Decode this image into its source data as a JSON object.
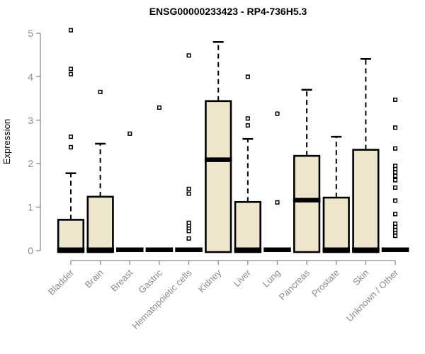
{
  "title": "ENSG00000233423 - RP4-736H5.3",
  "chart_data": {
    "type": "boxplot",
    "title": "ENSG00000233423 - RP4-736H5.3",
    "ylabel": "Expression",
    "xlabel": "",
    "ylim": [
      0,
      5
    ],
    "yticks": [
      0,
      1,
      2,
      3,
      4,
      5
    ],
    "grid": false,
    "legend": "none",
    "categories": [
      "Bladder",
      "Brain",
      "Breast",
      "Gastric",
      "Hematopoietic cells",
      "Kidney",
      "Liver",
      "Lung",
      "Pancreas",
      "Prostate",
      "Skin",
      "Unknown / Other"
    ],
    "boxes": [
      {
        "category": "Bladder",
        "q1": 0,
        "median": 0.02,
        "q3": 0.71,
        "whisker_low": 0,
        "whisker_high": 1.78,
        "outliers": [
          2.38,
          2.62,
          4.06,
          4.18,
          5.07
        ]
      },
      {
        "category": "Brain",
        "q1": 0,
        "median": 0.02,
        "q3": 1.24,
        "whisker_low": 0,
        "whisker_high": 2.46,
        "outliers": [
          3.65
        ]
      },
      {
        "category": "Breast",
        "q1": 0,
        "median": 0.02,
        "q3": 0,
        "whisker_low": 0,
        "whisker_high": 0,
        "outliers": [
          2.69
        ]
      },
      {
        "category": "Gastric",
        "q1": 0,
        "median": 0.02,
        "q3": 0,
        "whisker_low": 0,
        "whisker_high": 0,
        "outliers": [
          3.29
        ]
      },
      {
        "category": "Hematopoietic cells",
        "q1": 0,
        "median": 0.02,
        "q3": 0,
        "whisker_low": 0,
        "whisker_high": 0,
        "outliers": [
          0.28,
          0.45,
          0.52,
          0.58,
          0.64,
          1.31,
          1.42,
          4.49
        ]
      },
      {
        "category": "Kidney",
        "q1": 0,
        "median": 2.09,
        "q3": 3.44,
        "whisker_low": 0,
        "whisker_high": 4.8,
        "outliers": []
      },
      {
        "category": "Liver",
        "q1": 0,
        "median": 0.02,
        "q3": 1.12,
        "whisker_low": 0,
        "whisker_high": 2.57,
        "outliers": [
          2.88,
          3.04,
          4.0
        ]
      },
      {
        "category": "Lung",
        "q1": 0,
        "median": 0.02,
        "q3": 0,
        "whisker_low": 0,
        "whisker_high": 0,
        "outliers": [
          1.11,
          3.15
        ]
      },
      {
        "category": "Pancreas",
        "q1": 0,
        "median": 1.16,
        "q3": 2.18,
        "whisker_low": 0,
        "whisker_high": 3.7,
        "outliers": []
      },
      {
        "category": "Prostate",
        "q1": 0,
        "median": 0.02,
        "q3": 1.22,
        "whisker_low": 0,
        "whisker_high": 2.62,
        "outliers": []
      },
      {
        "category": "Skin",
        "q1": 0,
        "median": 0.02,
        "q3": 2.32,
        "whisker_low": 0,
        "whisker_high": 4.41,
        "outliers": []
      },
      {
        "category": "Unknown / Other",
        "q1": 0,
        "median": 0.02,
        "q3": 0,
        "whisker_low": 0,
        "whisker_high": 0,
        "outliers": [
          0.34,
          0.42,
          0.48,
          0.55,
          0.62,
          0.84,
          1.15,
          1.45,
          1.62,
          1.72,
          1.8,
          1.88,
          1.95,
          2.35,
          2.83,
          3.47
        ]
      }
    ],
    "colors": {
      "box_fill": "#EDE6CC",
      "box_stroke": "#000000",
      "median": "#000000",
      "whisker": "#000000",
      "outlier_stroke": "#000000",
      "outlier_fill": "#FFFFFF",
      "axis": "#8C8C8C",
      "tick_label": "#8C8C8C",
      "title": "#000000"
    }
  }
}
